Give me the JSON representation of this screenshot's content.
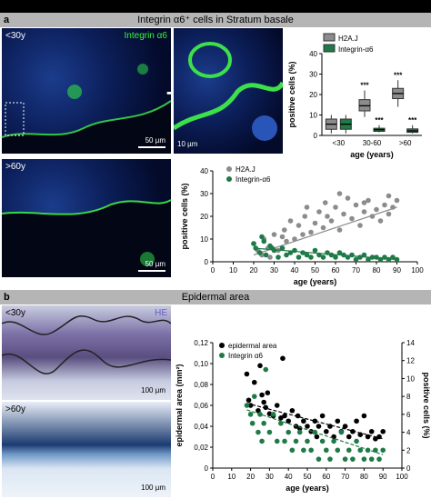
{
  "section_a": {
    "letter": "a",
    "title": "Integrin α6⁺ cells in Stratum basale",
    "micro_top_age": "<30y",
    "micro_top_stain": "Integrin α6",
    "micro_top_scale": "50 µm",
    "zoom_scale": "10 µm",
    "micro_bottom_age": ">60y",
    "micro_bottom_scale": "50 µm"
  },
  "section_b": {
    "letter": "b",
    "title": "Epidermal area",
    "micro_top_age": "<30y",
    "micro_top_stain": "HE",
    "micro_top_scale": "100 µm",
    "micro_bottom_age": ">60y",
    "micro_bottom_scale": "100 µm"
  },
  "colors": {
    "gray": "#8c8c8c",
    "green": "#1e7a46",
    "black": "#000000"
  },
  "chart_data": [
    {
      "type": "box",
      "ylabel": "positive cells (%)",
      "xlabel": "age (years)",
      "categories": [
        "<30",
        "30-60",
        ">60"
      ],
      "ylim": [
        0,
        40
      ],
      "yticks": [
        0,
        10,
        20,
        30,
        40
      ],
      "legend": [
        "H2A.J",
        "Integrin-α6"
      ],
      "series": [
        {
          "name": "H2A.J",
          "color": "#8c8c8c",
          "boxes": [
            {
              "min": 1,
              "q1": 3,
              "median": 5.5,
              "q3": 8,
              "max": 10,
              "sig": ""
            },
            {
              "min": 9,
              "q1": 12,
              "median": 14.5,
              "q3": 17.5,
              "max": 22,
              "sig": "***"
            },
            {
              "min": 14,
              "q1": 18,
              "median": 20.5,
              "q3": 23,
              "max": 27,
              "sig": "***"
            }
          ]
        },
        {
          "name": "Integrin-α6",
          "color": "#1e7a46",
          "boxes": [
            {
              "min": 1,
              "q1": 3,
              "median": 5.5,
              "q3": 8,
              "max": 10,
              "sig": ""
            },
            {
              "min": 1.5,
              "q1": 2,
              "median": 2.8,
              "q3": 3.5,
              "max": 5,
              "sig": "***"
            },
            {
              "min": 1,
              "q1": 1.5,
              "median": 2.2,
              "q3": 3.2,
              "max": 5,
              "sig": "***"
            }
          ]
        }
      ]
    },
    {
      "type": "scatter",
      "ylabel": "positive cells (%)",
      "xlabel": "age (years)",
      "xlim": [
        0,
        100
      ],
      "ylim": [
        0,
        40
      ],
      "xticks": [
        0,
        10,
        20,
        30,
        40,
        50,
        60,
        70,
        80,
        90,
        100
      ],
      "yticks": [
        0,
        10,
        20,
        30,
        40
      ],
      "series": [
        {
          "name": "H2A.J",
          "color": "#8c8c8c",
          "points": [
            [
              20,
              8
            ],
            [
              22,
              5
            ],
            [
              24,
              3
            ],
            [
              25,
              10
            ],
            [
              27,
              6
            ],
            [
              28,
              2
            ],
            [
              30,
              12
            ],
            [
              32,
              5
            ],
            [
              35,
              14
            ],
            [
              36,
              9
            ],
            [
              38,
              18
            ],
            [
              40,
              10
            ],
            [
              42,
              16
            ],
            [
              44,
              12
            ],
            [
              45,
              20
            ],
            [
              48,
              13
            ],
            [
              50,
              17
            ],
            [
              52,
              22
            ],
            [
              54,
              15
            ],
            [
              55,
              26
            ],
            [
              58,
              18
            ],
            [
              60,
              24
            ],
            [
              62,
              14
            ],
            [
              64,
              21
            ],
            [
              66,
              28
            ],
            [
              68,
              19
            ],
            [
              70,
              25
            ],
            [
              72,
              16
            ],
            [
              74,
              22
            ],
            [
              76,
              27
            ],
            [
              78,
              20
            ],
            [
              80,
              23
            ],
            [
              82,
              18
            ],
            [
              84,
              25
            ],
            [
              86,
              21
            ],
            [
              88,
              24
            ],
            [
              90,
              27
            ],
            [
              56,
              20
            ],
            [
              46,
              24
            ],
            [
              34,
              11
            ],
            [
              62,
              30
            ],
            [
              74,
              26
            ],
            [
              86,
              29
            ]
          ],
          "trend": [
            [
              20,
              3
            ],
            [
              90,
              24
            ]
          ]
        },
        {
          "name": "Integrin-α6",
          "color": "#1e7a46",
          "points": [
            [
              20,
              8
            ],
            [
              21,
              6
            ],
            [
              23,
              4
            ],
            [
              24,
              11
            ],
            [
              26,
              3
            ],
            [
              28,
              7
            ],
            [
              30,
              5
            ],
            [
              32,
              2
            ],
            [
              34,
              6
            ],
            [
              36,
              3
            ],
            [
              38,
              4
            ],
            [
              40,
              5
            ],
            [
              42,
              2
            ],
            [
              44,
              4
            ],
            [
              46,
              3
            ],
            [
              48,
              2
            ],
            [
              50,
              5
            ],
            [
              52,
              3
            ],
            [
              54,
              2
            ],
            [
              56,
              4
            ],
            [
              58,
              3
            ],
            [
              60,
              2
            ],
            [
              62,
              4
            ],
            [
              64,
              3
            ],
            [
              66,
              2
            ],
            [
              68,
              3
            ],
            [
              70,
              1
            ],
            [
              72,
              2
            ],
            [
              74,
              3
            ],
            [
              76,
              1
            ],
            [
              78,
              2
            ],
            [
              80,
              2
            ],
            [
              82,
              1
            ],
            [
              84,
              2
            ],
            [
              86,
              1
            ],
            [
              88,
              2
            ],
            [
              90,
              1
            ],
            [
              25,
              9
            ],
            [
              29,
              6
            ]
          ],
          "trend": [
            [
              20,
              6
            ],
            [
              90,
              1
            ]
          ]
        }
      ]
    },
    {
      "type": "scatter",
      "ylabel": "epidermal area (mm²)",
      "y2label": "positive cells (%)",
      "xlabel": "age (years)",
      "xlim": [
        0,
        100
      ],
      "ylim": [
        0,
        0.12
      ],
      "y2lim": [
        0,
        14
      ],
      "xticks": [
        0,
        10,
        20,
        30,
        40,
        50,
        60,
        70,
        80,
        90,
        100
      ],
      "yticks": [
        0,
        0.02,
        0.04,
        0.06,
        0.08,
        0.1,
        0.12
      ],
      "yticklabels": [
        "0",
        "0,02",
        "0,04",
        "0,06",
        "0,08",
        "0,10",
        "0,12"
      ],
      "y2ticks": [
        0,
        2,
        4,
        6,
        8,
        10,
        12,
        14
      ],
      "series": [
        {
          "name": "epidermal area",
          "color": "#000000",
          "axis": "left",
          "points": [
            [
              18,
              0.09
            ],
            [
              19,
              0.065
            ],
            [
              20,
              0.06
            ],
            [
              22,
              0.082
            ],
            [
              24,
              0.055
            ],
            [
              25,
              0.098
            ],
            [
              26,
              0.07
            ],
            [
              27,
              0.063
            ],
            [
              28,
              0.058
            ],
            [
              29,
              0.072
            ],
            [
              30,
              0.052
            ],
            [
              32,
              0.05
            ],
            [
              34,
              0.06
            ],
            [
              36,
              0.048
            ],
            [
              37,
              0.105
            ],
            [
              38,
              0.05
            ],
            [
              40,
              0.045
            ],
            [
              42,
              0.055
            ],
            [
              44,
              0.04
            ],
            [
              45,
              0.05
            ],
            [
              46,
              0.038
            ],
            [
              48,
              0.045
            ],
            [
              50,
              0.04
            ],
            [
              52,
              0.035
            ],
            [
              54,
              0.045
            ],
            [
              55,
              0.03
            ],
            [
              56,
              0.04
            ],
            [
              58,
              0.05
            ],
            [
              60,
              0.035
            ],
            [
              62,
              0.04
            ],
            [
              64,
              0.03
            ],
            [
              66,
              0.045
            ],
            [
              68,
              0.035
            ],
            [
              70,
              0.04
            ],
            [
              72,
              0.03
            ],
            [
              74,
              0.035
            ],
            [
              76,
              0.045
            ],
            [
              78,
              0.032
            ],
            [
              80,
              0.05
            ],
            [
              82,
              0.03
            ],
            [
              84,
              0.035
            ],
            [
              86,
              0.028
            ],
            [
              88,
              0.03
            ],
            [
              90,
              0.035
            ]
          ],
          "trend": [
            [
              18,
              0.062
            ],
            [
              90,
              0.028
            ]
          ]
        },
        {
          "name": "Integrin α6",
          "color": "#1e7a46",
          "axis": "right",
          "points": [
            [
              18,
              7
            ],
            [
              20,
              6
            ],
            [
              21,
              5
            ],
            [
              22,
              8
            ],
            [
              24,
              4
            ],
            [
              25,
              6
            ],
            [
              26,
              3
            ],
            [
              27,
              5
            ],
            [
              28,
              11
            ],
            [
              30,
              4
            ],
            [
              32,
              6
            ],
            [
              34,
              3
            ],
            [
              36,
              5
            ],
            [
              38,
              3
            ],
            [
              40,
              4
            ],
            [
              42,
              2
            ],
            [
              44,
              3
            ],
            [
              46,
              4
            ],
            [
              48,
              2
            ],
            [
              50,
              3
            ],
            [
              52,
              2
            ],
            [
              54,
              4
            ],
            [
              56,
              1
            ],
            [
              58,
              3
            ],
            [
              60,
              2
            ],
            [
              62,
              1
            ],
            [
              64,
              3
            ],
            [
              66,
              2
            ],
            [
              68,
              4
            ],
            [
              70,
              1
            ],
            [
              72,
              2
            ],
            [
              74,
              1
            ],
            [
              76,
              3
            ],
            [
              78,
              2
            ],
            [
              80,
              1
            ],
            [
              82,
              2
            ],
            [
              84,
              1
            ],
            [
              86,
              2
            ],
            [
              88,
              1
            ],
            [
              90,
              2
            ]
          ],
          "trend": [
            [
              18,
              6.5
            ],
            [
              90,
              1.5
            ]
          ]
        }
      ]
    }
  ]
}
